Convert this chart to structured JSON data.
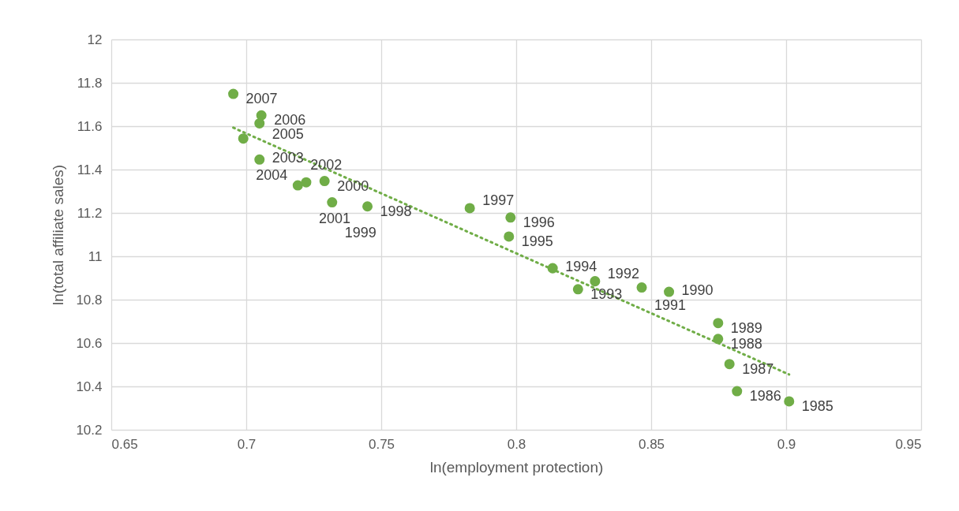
{
  "chart_data": {
    "type": "scatter",
    "xlabel": "ln(employment protection)",
    "ylabel": "ln(total affiliate sales)",
    "xlim": [
      0.65,
      0.95
    ],
    "ylim": [
      10.2,
      12
    ],
    "xticks": [
      0.65,
      0.7,
      0.75,
      0.8,
      0.85,
      0.9,
      0.95
    ],
    "yticks": [
      10.2,
      10.4,
      10.6,
      10.8,
      11,
      11.2,
      11.4,
      11.6,
      11.8,
      12
    ],
    "grid": true,
    "series": [
      {
        "color": "#70ad47",
        "marker": "circle",
        "x": [
          0.6952,
          0.7056,
          0.7049,
          0.6989,
          0.7049,
          0.7191,
          0.7222,
          0.729,
          0.7318,
          0.7449,
          0.7828,
          0.7979,
          0.7973,
          0.8135,
          0.8229,
          0.8292,
          0.8465,
          0.8566,
          0.8748,
          0.8748,
          0.879,
          0.8818,
          0.9011
        ],
        "values": [
          11.749,
          11.65,
          11.613,
          11.543,
          11.446,
          11.327,
          11.341,
          11.347,
          11.249,
          11.23,
          11.222,
          11.179,
          11.091,
          10.945,
          10.848,
          10.885,
          10.856,
          10.836,
          10.692,
          10.619,
          10.503,
          10.378,
          10.331
        ]
      },
      {
        "type": "line",
        "color": "#70ad47",
        "line_style": "dotted",
        "x": [
          0.6952,
          0.9011
        ],
        "values": [
          11.593,
          10.455
        ]
      }
    ],
    "annotations": [
      {
        "text": "2007",
        "x": 0.6952,
        "y": 11.749
      },
      {
        "text": "2006",
        "x": 0.7056,
        "y": 11.65
      },
      {
        "text": "2005",
        "x": 0.7049,
        "y": 11.613
      },
      {
        "text": "2004",
        "x": 0.6989,
        "y": 11.543
      },
      {
        "text": "2003",
        "x": 0.7049,
        "y": 11.446
      },
      {
        "text": "2002",
        "x": 0.7191,
        "y": 11.327
      },
      {
        "text": "2001",
        "x": 0.7222,
        "y": 11.341
      },
      {
        "text": "2000",
        "x": 0.729,
        "y": 11.347
      },
      {
        "text": "1999",
        "x": 0.7318,
        "y": 11.249
      },
      {
        "text": "1998",
        "x": 0.7449,
        "y": 11.23
      },
      {
        "text": "1997",
        "x": 0.7828,
        "y": 11.222
      },
      {
        "text": "1996",
        "x": 0.7979,
        "y": 11.179
      },
      {
        "text": "1995",
        "x": 0.7973,
        "y": 11.091
      },
      {
        "text": "1994",
        "x": 0.8135,
        "y": 10.945
      },
      {
        "text": "1993",
        "x": 0.8229,
        "y": 10.848
      },
      {
        "text": "1992",
        "x": 0.8292,
        "y": 10.885
      },
      {
        "text": "1991",
        "x": 0.8465,
        "y": 10.856
      },
      {
        "text": "1990",
        "x": 0.8566,
        "y": 10.836
      },
      {
        "text": "1989",
        "x": 0.8748,
        "y": 10.692
      },
      {
        "text": "1988",
        "x": 0.8748,
        "y": 10.619
      },
      {
        "text": "1987",
        "x": 0.879,
        "y": 10.503
      },
      {
        "text": "1986",
        "x": 0.8818,
        "y": 10.378
      },
      {
        "text": "1985",
        "x": 0.9011,
        "y": 10.331
      }
    ]
  }
}
